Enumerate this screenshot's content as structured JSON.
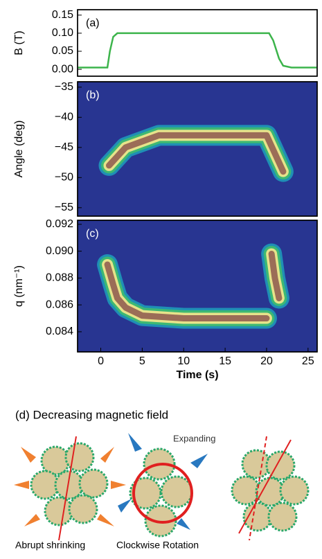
{
  "chart_data": [
    {
      "type": "line",
      "panel": "(a)",
      "ylabel": "B (T)",
      "xlim": [
        -2.8,
        26.1
      ],
      "ylim": [
        -0.019,
        0.165
      ],
      "yticks": [
        {
          "value": 0,
          "label": "0.00"
        },
        {
          "value": 0.05,
          "label": "0.05"
        },
        {
          "value": 0.1,
          "label": "0.10"
        },
        {
          "value": 0.15,
          "label": "0.15"
        }
      ],
      "background": "#ffffff",
      "series": [
        {
          "color": "#3cb44b",
          "x": [
            -2.8,
            0.8,
            1.1,
            1.5,
            2,
            20.3,
            20.8,
            21.5,
            22,
            23,
            26.1
          ],
          "values": [
            0.005,
            0.005,
            0.05,
            0.09,
            0.1,
            0.1,
            0.08,
            0.03,
            0.01,
            0.005,
            0.005
          ]
        }
      ]
    },
    {
      "type": "ridge",
      "panel": "(b)",
      "ylabel": "Angle (deg)",
      "xlim": [
        -2.8,
        26.1
      ],
      "ylim": [
        -56.4,
        -34.1
      ],
      "yticks": [
        {
          "value": -55,
          "label": "−55"
        },
        {
          "value": -50,
          "label": "−50"
        },
        {
          "value": -45,
          "label": "−45"
        },
        {
          "value": -40,
          "label": "−40"
        },
        {
          "value": -35,
          "label": "−35"
        }
      ],
      "background": "#283591",
      "band_colors": [
        "#1f8fb5",
        "#3db874",
        "#e6e38a",
        "#9b6d57"
      ],
      "series": [
        {
          "x": [
            1,
            2,
            3,
            5,
            7,
            10,
            15,
            20,
            21,
            22
          ],
          "values": [
            -48,
            -46.5,
            -45,
            -44,
            -43,
            -43,
            -43,
            -43,
            -46,
            -49
          ]
        }
      ]
    },
    {
      "type": "ridge",
      "panel": "(c)",
      "ylabel": "q (nm⁻¹)",
      "xlabel": "Time (s)",
      "xlim": [
        -2.8,
        26.1
      ],
      "ylim": [
        0.0825,
        0.0923
      ],
      "yticks": [
        {
          "value": 0.084,
          "label": "0.084"
        },
        {
          "value": 0.086,
          "label": "0.086"
        },
        {
          "value": 0.088,
          "label": "0.088"
        },
        {
          "value": 0.09,
          "label": "0.090"
        },
        {
          "value": 0.092,
          "label": "0.092"
        }
      ],
      "xticks": [
        0,
        5,
        10,
        15,
        20,
        25
      ],
      "background": "#283591",
      "band_colors": [
        "#1f8fb5",
        "#3db874",
        "#e6e38a",
        "#9b6d57"
      ],
      "series": [
        {
          "x": [
            0.8,
            1.5,
            2,
            3,
            5,
            10,
            15,
            20,
            20.3,
            20.6,
            21,
            21.5
          ],
          "values": [
            0.089,
            0.0875,
            0.0865,
            0.0858,
            0.0852,
            0.085,
            0.085,
            0.085,
            null,
            0.0898,
            0.088,
            0.0865
          ]
        }
      ]
    }
  ],
  "diagram": {
    "title": "(d) Decreasing magnetic field",
    "expanding": "Expanding",
    "shrinking": "Abrupt shrinking",
    "rotation": "Clockwise Rotation"
  }
}
